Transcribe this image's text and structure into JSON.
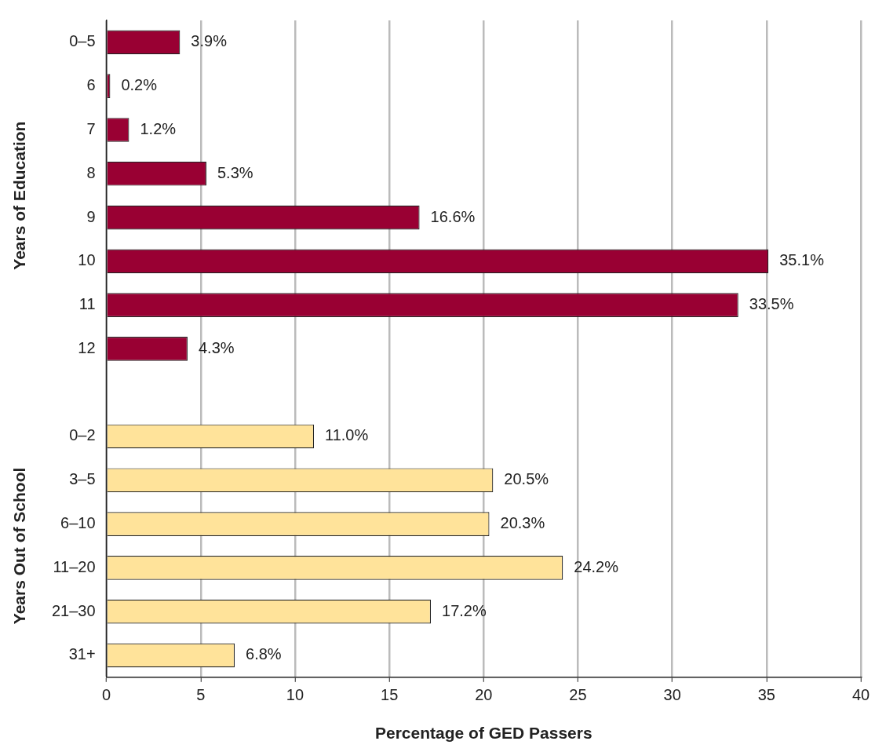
{
  "chart_data": {
    "type": "bar",
    "orientation": "horizontal",
    "xlabel": "Percentage of GED Passers",
    "categories": [
      "0–5",
      "6",
      "7",
      "8",
      "9",
      "10",
      "11",
      "12",
      null,
      "0–2",
      "3–5",
      "6–10",
      "11–20",
      "21–30",
      "31+"
    ],
    "values": [
      3.9,
      0.2,
      1.2,
      5.3,
      16.6,
      35.1,
      33.5,
      4.3,
      null,
      11.0,
      20.5,
      20.3,
      24.2,
      17.2,
      6.8
    ],
    "value_labels": [
      "3.9%",
      "0.2%",
      "1.2%",
      "5.3%",
      "16.6%",
      "35.1%",
      "33.5%",
      "4.3%",
      null,
      "11.0%",
      "20.5%",
      "20.3%",
      "24.2%",
      "17.2%",
      "6.8%"
    ],
    "colors": [
      "#990033",
      "#990033",
      "#990033",
      "#990033",
      "#990033",
      "#990033",
      "#990033",
      "#990033",
      null,
      "#ffe39a",
      "#ffe39a",
      "#ffe39a",
      "#ffe39a",
      "#ffe39a",
      "#ffe39a"
    ],
    "annotations": [
      "Years of Education",
      "Years Out of School"
    ],
    "xlim": [
      0,
      40
    ],
    "xticks": [
      0,
      5,
      10,
      15,
      20,
      25,
      30,
      35,
      40
    ],
    "grid": "x",
    "legend": false
  }
}
